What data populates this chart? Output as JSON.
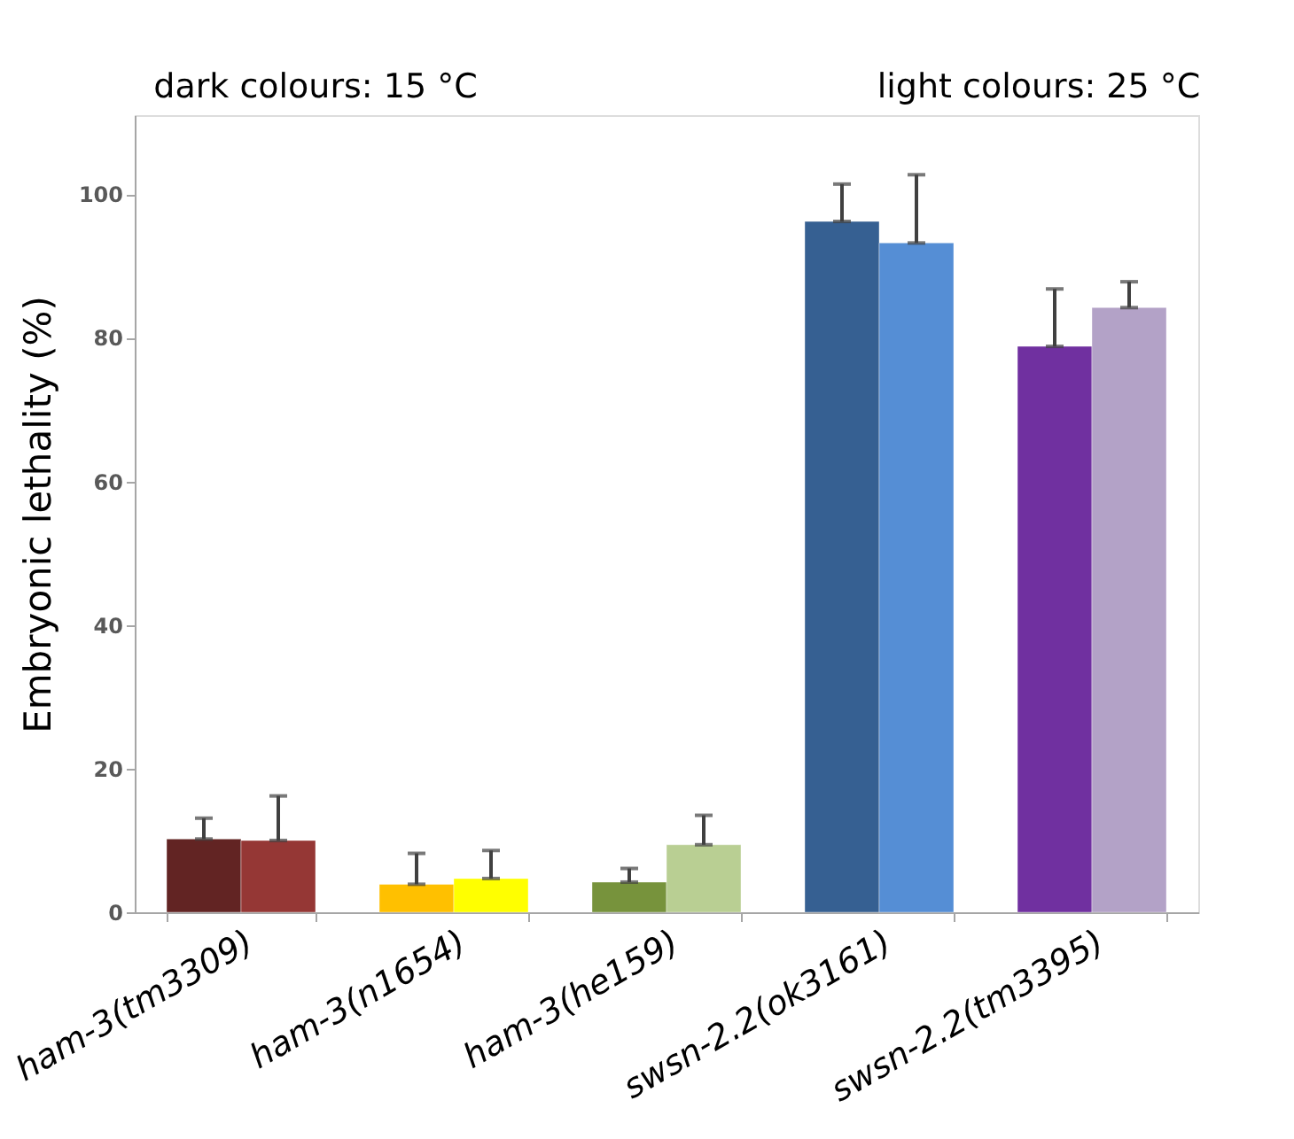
{
  "chart_data": {
    "type": "bar",
    "categories": [
      "ham-3(tm3309)",
      "ham-3(n1654)",
      "ham-3(he159)",
      "swsn-2.2(ok3161)",
      "swsn-2.2(tm3395)"
    ],
    "series": [
      {
        "colors": [
          "#622423",
          "#ffc000",
          "#77933c",
          "#366092",
          "#7030a0"
        ],
        "values": [
          10.2,
          3.9,
          4.2,
          96.2,
          78.8
        ],
        "errors": [
          [
            10.2,
            13.1
          ],
          [
            3.9,
            8.2
          ],
          [
            4.2,
            6.1
          ],
          [
            96.2,
            101.4
          ],
          [
            78.8,
            86.8
          ]
        ]
      },
      {
        "colors": [
          "#953735",
          "#ffff00",
          "#b9cf93",
          "#558ed5",
          "#b3a2c7"
        ],
        "values": [
          10.0,
          4.7,
          9.4,
          93.2,
          84.2
        ],
        "errors": [
          [
            10.0,
            16.2
          ],
          [
            4.7,
            8.6
          ],
          [
            9.4,
            13.5
          ],
          [
            93.2,
            102.7
          ],
          [
            84.2,
            87.8
          ]
        ]
      }
    ],
    "ylabel": "Embryonic lethality (%)",
    "ylim": [
      0,
      111
    ],
    "yticks": [
      0,
      20,
      40,
      60,
      80,
      100
    ],
    "grid": false,
    "legend": false,
    "annotations": [
      "dark colours: 15 °C",
      "light colours: 25 °C"
    ]
  }
}
